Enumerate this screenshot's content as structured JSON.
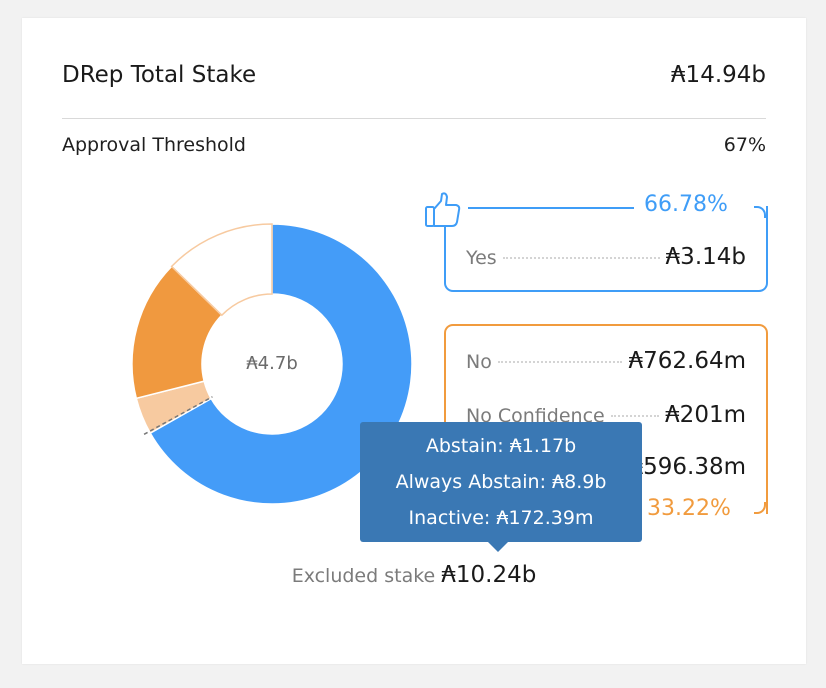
{
  "header": {
    "title": "DRep Total Stake",
    "total": "₳14.94b"
  },
  "threshold": {
    "label": "Approval Threshold",
    "value": "67%"
  },
  "donut": {
    "center_label": "₳4.7b",
    "segments": [
      {
        "name": "Yes",
        "fraction": 0.6678,
        "color": "#449cf8"
      },
      {
        "name": "No Confidence",
        "fraction": 0.0428,
        "color": "#f7caa0"
      },
      {
        "name": "No",
        "fraction": 0.1622,
        "color": "#f0993f"
      },
      {
        "name": "Abstain",
        "fraction": 0.1272,
        "color": "#ffffff"
      }
    ]
  },
  "yes": {
    "percent": "66.78%",
    "label": "Yes",
    "value": "₳3.14b",
    "color": "#3f9df7"
  },
  "no": {
    "percent": "33.22%",
    "color": "#f19b3e",
    "rows": [
      {
        "label": "No",
        "value": "₳762.64m"
      },
      {
        "label": "No Confidence",
        "value": "₳201m"
      },
      {
        "label": "",
        "value": "₳596.38m"
      }
    ]
  },
  "tooltip": {
    "abstain": "Abstain: ₳1.17b",
    "always_abstain": "Always Abstain: ₳8.9b",
    "inactive": "Inactive: ₳172.39m"
  },
  "excluded": {
    "label": "Excluded stake",
    "value": "₳10.24b"
  },
  "icons": {
    "yes": "thumbs-up-icon"
  }
}
